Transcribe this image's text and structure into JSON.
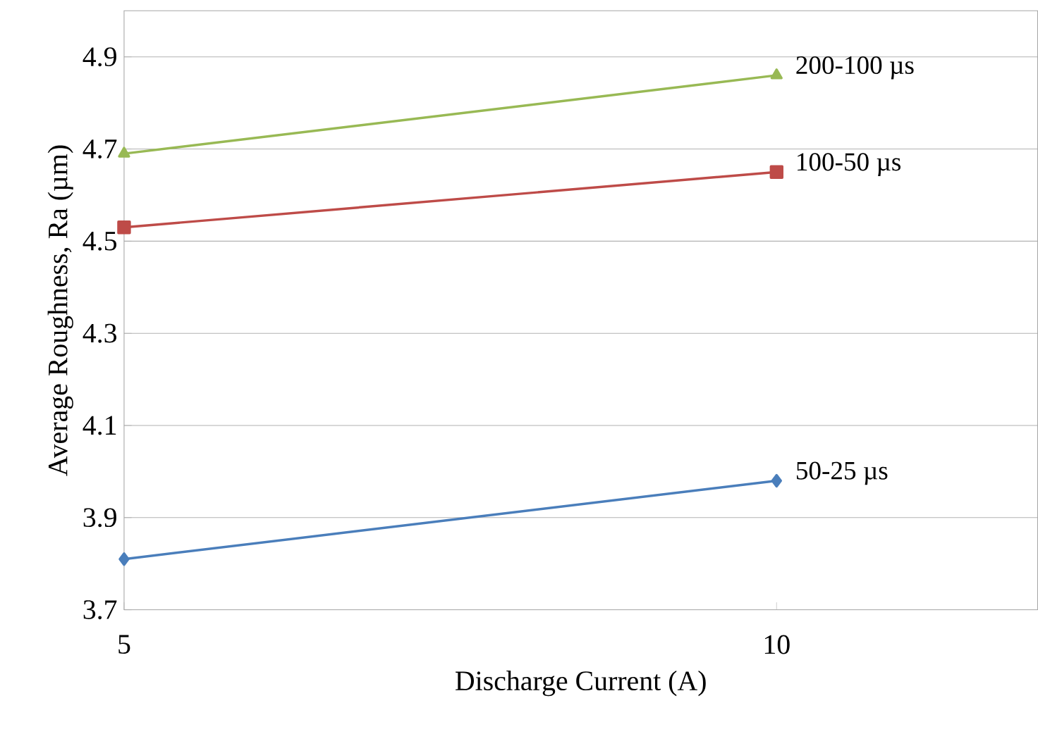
{
  "chart_data": {
    "type": "line",
    "xlabel": "Discharge Current (A)",
    "ylabel": "Average Roughness, Ra (µm)",
    "x": [
      5,
      10
    ],
    "xlim": [
      5,
      12
    ],
    "xticks": [
      5,
      10
    ],
    "ylim": [
      3.7,
      5.0
    ],
    "yticks": [
      3.7,
      3.9,
      4.1,
      4.3,
      4.5,
      4.7,
      4.9
    ],
    "grid": "y",
    "series": [
      {
        "name": "50-25 µs",
        "color": "#4a7ebb",
        "marker": "diamond",
        "values": [
          3.81,
          3.98
        ]
      },
      {
        "name": "100-50 µs",
        "color": "#be4b48",
        "marker": "square",
        "values": [
          4.53,
          4.65
        ]
      },
      {
        "name": "200-100 µs",
        "color": "#98b954",
        "marker": "triangle",
        "values": [
          4.69,
          4.86
        ]
      }
    ]
  }
}
